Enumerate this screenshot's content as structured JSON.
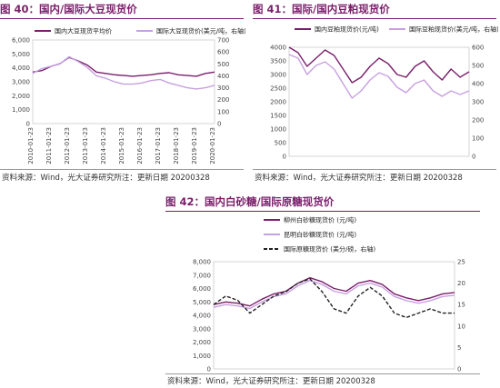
{
  "panels": [
    {
      "title": "图 40：国内/国际大豆现货价",
      "source": "资料来源：Wind，光大证券研究所注：更新日期 20200328",
      "chart_data": {
        "type": "line",
        "x_ticks": [
          "2010-01-23",
          "2011-01-23",
          "2012-01-23",
          "2013-01-23",
          "2014-01-23",
          "2015-01-23",
          "2016-01-23",
          "2017-01-23",
          "2018-01-23",
          "2019-01-23",
          "2020-01-23"
        ],
        "y_left_ticks": [
          "0",
          "1,000",
          "2,000",
          "3,000",
          "4,000",
          "5,000",
          "6,000"
        ],
        "y_right_ticks": [
          "0",
          "100",
          "200",
          "300",
          "400",
          "500",
          "600",
          "700"
        ],
        "ylim_left": [
          0,
          6000
        ],
        "ylim_right": [
          0,
          700
        ],
        "legend": "top",
        "series": [
          {
            "name": "国内大豆现货平均价",
            "axis": "left",
            "color": "#7a1f6b",
            "values": [
              3700,
              3800,
              4100,
              4300,
              4750,
              4500,
              4200,
              3700,
              3600,
              3500,
              3450,
              3400,
              3450,
              3500,
              3600,
              3650,
              3500,
              3450,
              3400,
              3600,
              3700
            ]
          },
          {
            "name": "国际大豆现货价(美元/吨，右轴)",
            "axis": "right",
            "color": "#c7a0e0",
            "values": [
              420,
              460,
              480,
              500,
              560,
              520,
              470,
              400,
              380,
              350,
              330,
              330,
              340,
              360,
              370,
              340,
              320,
              300,
              290,
              300,
              320
            ]
          }
        ]
      }
    },
    {
      "title": "图 41：国际/国内豆粕现货价",
      "source": "资料来源：Wind，光大证券研究所注：更新日期 20200328",
      "chart_data": {
        "type": "line",
        "x_ticks": [],
        "y_left_ticks": [
          "0",
          "500",
          "1000",
          "1500",
          "2000",
          "2500",
          "3000",
          "3500",
          "4000"
        ],
        "y_right_ticks": [
          "0",
          "100",
          "200",
          "300",
          "400",
          "500",
          "600"
        ],
        "ylim_left": [
          0,
          4000
        ],
        "ylim_right": [
          0,
          600
        ],
        "legend": "top",
        "series": [
          {
            "name": "国内豆粕现货价(元/吨)",
            "axis": "left",
            "color": "#7a1f6b",
            "values": [
              4000,
              3800,
              3300,
              3600,
              3900,
              3700,
              3200,
              2700,
              2900,
              3300,
              3600,
              3400,
              3000,
              2900,
              3300,
              3500,
              3100,
              2800,
              3200,
              2900,
              3100
            ]
          },
          {
            "name": "国际豆粕现货价(美元/吨，右轴)",
            "axis": "right",
            "color": "#c7a0e0",
            "values": [
              560,
              540,
              450,
              500,
              520,
              480,
              400,
              320,
              360,
              420,
              460,
              440,
              380,
              350,
              400,
              420,
              360,
              330,
              360,
              340,
              360
            ]
          }
        ]
      }
    },
    {
      "title": "图 42：国内白砂糖/国际原糖现货价",
      "source": "资料来源：Wind，光大证券研究所注：更新日期 20200328",
      "chart_data": {
        "type": "line",
        "x_ticks": [],
        "y_left_ticks": [
          "0",
          "1,000",
          "2,000",
          "3,000",
          "4,000",
          "5,000",
          "6,000",
          "7,000",
          "8,000"
        ],
        "y_right_ticks": [
          "0",
          "5",
          "10",
          "15",
          "20",
          "25"
        ],
        "ylim_left": [
          0,
          8000
        ],
        "ylim_right": [
          0,
          25
        ],
        "legend": "top",
        "series": [
          {
            "name": "柳州白砂糖现货价 (元/吨)",
            "axis": "left",
            "color": "#7a1f6b",
            "values": [
              4800,
              5000,
              4900,
              4700,
              5200,
              5600,
              5800,
              6400,
              6800,
              6500,
              6000,
              5800,
              6400,
              6600,
              6300,
              5600,
              5300,
              5100,
              5300,
              5600,
              5700
            ]
          },
          {
            "name": "昆明白砂糖现货价 (元/吨)",
            "axis": "left",
            "color": "#c7a0e0",
            "values": [
              4600,
              4800,
              4700,
              4500,
              5000,
              5400,
              5600,
              6200,
              6600,
              6300,
              5800,
              5600,
              6200,
              6400,
              6100,
              5400,
              5100,
              4900,
              5100,
              5400,
              5500
            ]
          },
          {
            "name": "国际原糖现货价 (美分/磅，右轴)",
            "axis": "right",
            "color": "#222222",
            "dashed": true,
            "values": [
              15,
              17,
              16,
              13,
              15,
              17,
              18,
              20,
              21,
              18,
              14,
              13,
              17,
              19,
              17,
              13,
              12,
              13,
              14,
              13,
              13
            ]
          }
        ]
      }
    }
  ]
}
